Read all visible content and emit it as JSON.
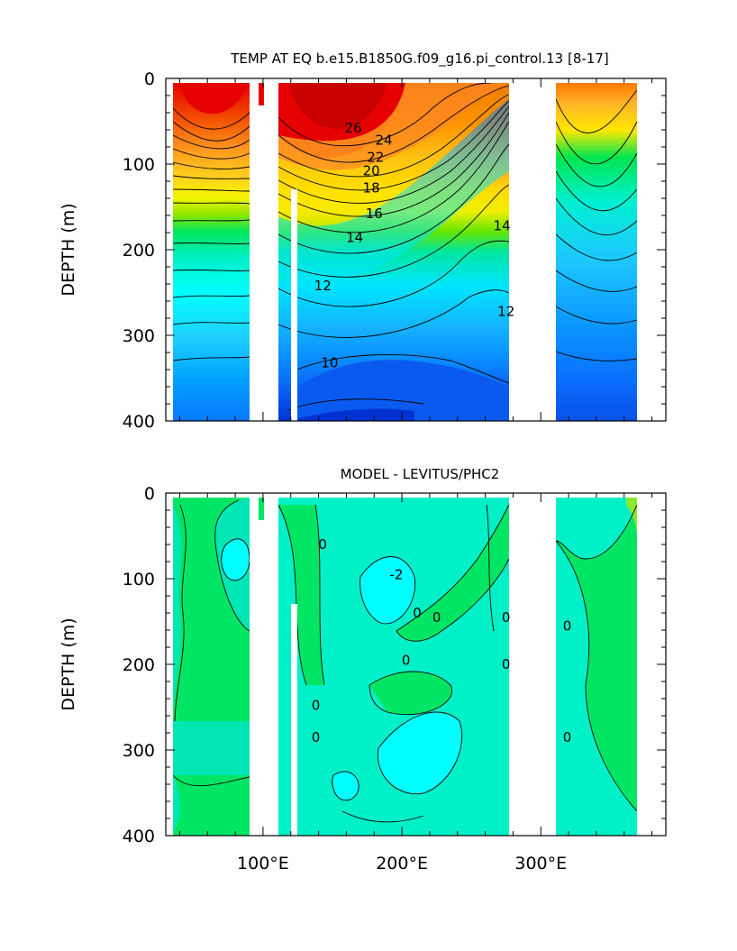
{
  "chart_data": [
    {
      "type": "heatmap",
      "title": "TEMP AT EQ b.e15.B1850G.f09_g16.pi_control.13 [8-17]",
      "ylabel": "DEPTH (m)",
      "ylim": [
        0,
        400
      ],
      "yticks": [
        "0",
        "100",
        "200",
        "300",
        "400"
      ],
      "xlim": [
        30,
        390
      ],
      "y_reversed": true,
      "contour_labels": [
        {
          "text": "26",
          "x": 165,
          "y": 58
        },
        {
          "text": "24",
          "x": 187,
          "y": 72
        },
        {
          "text": "22",
          "x": 181,
          "y": 92
        },
        {
          "text": "20",
          "x": 178,
          "y": 108
        },
        {
          "text": "18",
          "x": 178,
          "y": 128
        },
        {
          "text": "16",
          "x": 180,
          "y": 158
        },
        {
          "text": "14",
          "x": 166,
          "y": 186
        },
        {
          "text": "14",
          "x": 272,
          "y": 172
        },
        {
          "text": "12",
          "x": 143,
          "y": 242
        },
        {
          "text": "12",
          "x": 275,
          "y": 272
        },
        {
          "text": "10",
          "x": 148,
          "y": 332
        }
      ]
    },
    {
      "type": "heatmap",
      "title": "MODEL - LEVITUS/PHC2",
      "ylabel": "DEPTH (m)",
      "ylim": [
        0,
        400
      ],
      "yticks": [
        "0",
        "100",
        "200",
        "300",
        "400"
      ],
      "xticks": [
        "100°E",
        "200°E",
        "300°E"
      ],
      "xlim": [
        30,
        390
      ],
      "y_reversed": true,
      "contour_labels": [
        {
          "text": "0",
          "x": 143,
          "y": 60
        },
        {
          "text": "-2",
          "x": 196,
          "y": 95
        },
        {
          "text": "0",
          "x": 211,
          "y": 140
        },
        {
          "text": "0",
          "x": 225,
          "y": 145
        },
        {
          "text": "0",
          "x": 203,
          "y": 195
        },
        {
          "text": "0",
          "x": 275,
          "y": 145
        },
        {
          "text": "0",
          "x": 275,
          "y": 200
        },
        {
          "text": "0",
          "x": 319,
          "y": 155
        },
        {
          "text": "0",
          "x": 319,
          "y": 285
        },
        {
          "text": "0",
          "x": 138,
          "y": 248
        },
        {
          "text": "0",
          "x": 138,
          "y": 285
        }
      ]
    }
  ]
}
